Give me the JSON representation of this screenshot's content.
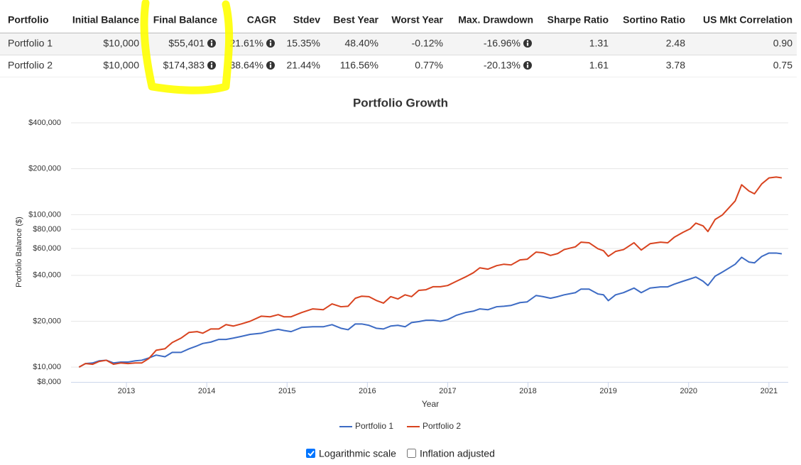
{
  "table": {
    "headers": [
      "Portfolio",
      "Initial Balance",
      "Final Balance",
      "CAGR",
      "Stdev",
      "Best Year",
      "Worst Year",
      "Max. Drawdown",
      "Sharpe Ratio",
      "Sortino Ratio",
      "US Mkt Correlation"
    ],
    "rows": [
      [
        "Portfolio 1",
        "$10,000",
        "$55,401",
        "21.61%",
        "15.35%",
        "48.40%",
        "-0.12%",
        "-16.96%",
        "1.31",
        "2.48",
        "0.90"
      ],
      [
        "Portfolio 2",
        "$10,000",
        "$174,383",
        "38.64%",
        "21.44%",
        "116.56%",
        "0.77%",
        "-20.13%",
        "1.61",
        "3.78",
        "0.75"
      ]
    ]
  },
  "chart_data": {
    "type": "line",
    "title": "Portfolio Growth",
    "xlabel": "Year",
    "ylabel": "Portfolio Balance ($)",
    "log_scale": true,
    "grid": true,
    "xlim": [
      2012.31,
      2021.24
    ],
    "xticks": [
      2013,
      2014,
      2015,
      2016,
      2017,
      2018,
      2019,
      2020,
      2021
    ],
    "ylim": [
      8000,
      400000
    ],
    "yticks": [
      {
        "value": 8000,
        "label": "$8,000"
      },
      {
        "value": 10000,
        "label": "$10,000"
      },
      {
        "value": 20000,
        "label": "$20,000"
      },
      {
        "value": 40000,
        "label": "$40,000"
      },
      {
        "value": 60000,
        "label": "$60,000"
      },
      {
        "value": 80000,
        "label": "$80,000"
      },
      {
        "value": 100000,
        "label": "$100,000"
      },
      {
        "value": 200000,
        "label": "$200,000"
      },
      {
        "value": 400000,
        "label": "$400,000"
      }
    ],
    "x": [
      2012.41,
      2012.49,
      2012.58,
      2012.66,
      2012.75,
      2012.84,
      2012.93,
      2013.02,
      2013.11,
      2013.19,
      2013.28,
      2013.37,
      2013.48,
      2013.57,
      2013.68,
      2013.78,
      2013.88,
      2013.95,
      2014.05,
      2014.15,
      2014.24,
      2014.33,
      2014.43,
      2014.54,
      2014.68,
      2014.79,
      2014.89,
      2014.96,
      2015.05,
      2015.18,
      2015.32,
      2015.45,
      2015.56,
      2015.67,
      2015.76,
      2015.85,
      2015.93,
      2016.02,
      2016.11,
      2016.2,
      2016.29,
      2016.38,
      2016.47,
      2016.55,
      2016.64,
      2016.73,
      2016.82,
      2016.91,
      2017.0,
      2017.11,
      2017.22,
      2017.32,
      2017.4,
      2017.5,
      2017.61,
      2017.7,
      2017.79,
      2017.9,
      2017.99,
      2018.1,
      2018.19,
      2018.28,
      2018.37,
      2018.45,
      2018.59,
      2018.66,
      2018.76,
      2018.87,
      2018.94,
      2019.0,
      2019.09,
      2019.19,
      2019.32,
      2019.41,
      2019.52,
      2019.65,
      2019.74,
      2019.82,
      2019.93,
      2020.02,
      2020.09,
      2020.18,
      2020.24,
      2020.33,
      2020.42,
      2020.58,
      2020.66,
      2020.75,
      2020.82,
      2020.91,
      2021.0,
      2021.09,
      2021.16
    ],
    "series": [
      {
        "name": "Portfolio 1",
        "color": "#3d6bc4",
        "values": [
          10000,
          10550,
          10650,
          11000,
          11100,
          10650,
          10800,
          10800,
          11000,
          11100,
          11500,
          12000,
          11700,
          12500,
          12500,
          13200,
          13800,
          14300,
          14600,
          15200,
          15200,
          15500,
          15900,
          16400,
          16700,
          17300,
          17700,
          17400,
          17100,
          18200,
          18400,
          18400,
          19000,
          18000,
          17600,
          19200,
          19200,
          18800,
          18000,
          17800,
          18600,
          18800,
          18400,
          19600,
          19900,
          20300,
          20300,
          20000,
          20500,
          21900,
          22800,
          23300,
          24100,
          23800,
          24900,
          25100,
          25400,
          26500,
          26800,
          29500,
          29000,
          28300,
          29000,
          29800,
          30800,
          32500,
          32500,
          30200,
          29800,
          27300,
          29800,
          30800,
          33000,
          30800,
          33000,
          33600,
          33600,
          35000,
          36600,
          37900,
          39000,
          36600,
          34300,
          39500,
          42000,
          47300,
          52500,
          48900,
          48300,
          53200,
          56000,
          56000,
          55401
        ]
      },
      {
        "name": "Portfolio 2",
        "color": "#d8431f",
        "values": [
          10000,
          10550,
          10450,
          10900,
          11100,
          10450,
          10650,
          10550,
          10650,
          10650,
          11400,
          12900,
          13200,
          14500,
          15500,
          16900,
          17100,
          16700,
          17800,
          17800,
          19000,
          18600,
          19200,
          20000,
          21600,
          21400,
          22100,
          21400,
          21400,
          22800,
          24100,
          23800,
          26000,
          24900,
          25100,
          28300,
          29200,
          29000,
          27400,
          26300,
          29000,
          28000,
          29800,
          29000,
          31900,
          32200,
          33700,
          33700,
          34300,
          36600,
          39000,
          41600,
          44800,
          43900,
          46300,
          47300,
          46800,
          50500,
          51000,
          56800,
          56200,
          54000,
          55600,
          59000,
          61500,
          66000,
          65400,
          59800,
          58000,
          53300,
          57400,
          59000,
          65400,
          58600,
          64500,
          66000,
          65400,
          71000,
          76600,
          80800,
          88000,
          84400,
          77500,
          93000,
          99500,
          123000,
          157000,
          143000,
          137000,
          159000,
          174000,
          176500,
          174383
        ]
      }
    ]
  },
  "controls": [
    {
      "label": "Logarithmic scale",
      "checked": true
    },
    {
      "label": "Inflation adjusted",
      "checked": false
    }
  ]
}
